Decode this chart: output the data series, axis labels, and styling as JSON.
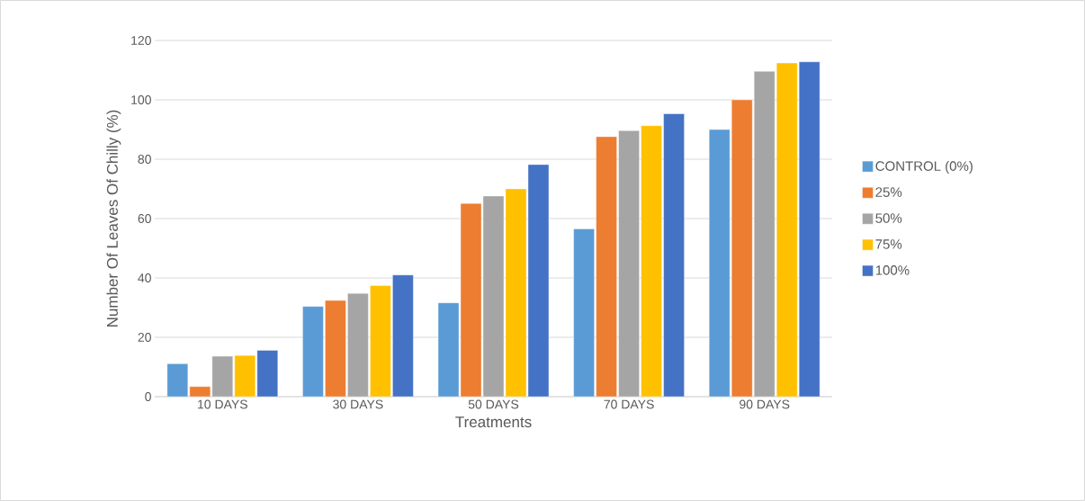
{
  "chart_data": {
    "type": "bar",
    "xlabel": "Treatments",
    "ylabel": "Number Of Leaves Of Chilly (%)",
    "categories": [
      "10 DAYS",
      "30 DAYS",
      "50 DAYS",
      "70 DAYS",
      "90 DAYS"
    ],
    "series": [
      {
        "name": "CONTROL  (0%)",
        "color": "#5b9bd5",
        "values": [
          11.1,
          30.4,
          31.6,
          56.5,
          90.0
        ]
      },
      {
        "name": "25%",
        "color": "#ed7d31",
        "values": [
          3.4,
          32.4,
          65.1,
          87.6,
          100.0
        ]
      },
      {
        "name": "50%",
        "color": "#a5a5a5",
        "values": [
          13.6,
          34.8,
          67.6,
          89.6,
          109.6
        ]
      },
      {
        "name": "75%",
        "color": "#ffc000",
        "values": [
          13.9,
          37.4,
          70.0,
          91.3,
          112.4
        ]
      },
      {
        "name": "100%",
        "color": "#4472c4",
        "values": [
          15.6,
          41.0,
          78.2,
          95.3,
          112.8
        ]
      }
    ],
    "ylim": [
      0,
      120
    ],
    "yticks": [
      0,
      20,
      40,
      60,
      80,
      100,
      120
    ],
    "grid": "y",
    "legend": "right"
  }
}
